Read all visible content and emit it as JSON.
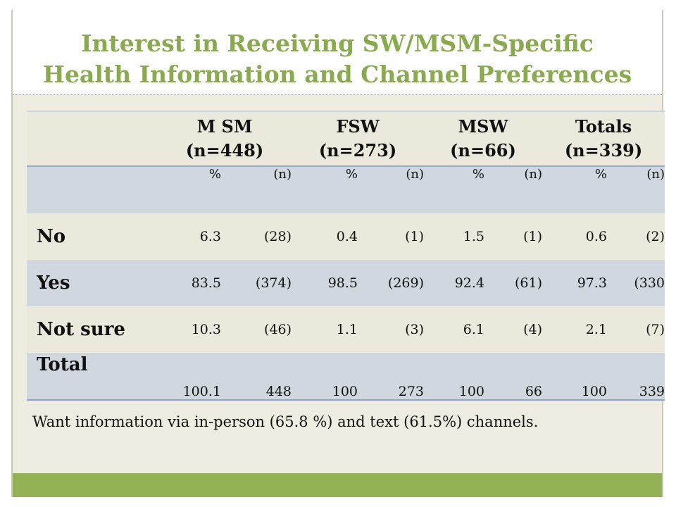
{
  "title": {
    "line1": "Interest in Receiving SW/MSM-Specific",
    "line2": "Health Information and Channel Preferences"
  },
  "table": {
    "columns": [
      {
        "name": "M SM",
        "n": "(n=448)"
      },
      {
        "name": "FSW",
        "n": "(n=273)"
      },
      {
        "name": "MSW",
        "n": "(n=66)"
      },
      {
        "name": "Totals",
        "n": "(n=339)"
      }
    ],
    "units": {
      "pct": "%",
      "count": "(n)"
    },
    "rows": [
      {
        "label": "No",
        "values": [
          "6.3",
          "(28)",
          "0.4",
          "(1)",
          "1.5",
          "(1)",
          "0.6",
          "(2)"
        ]
      },
      {
        "label": "Yes",
        "values": [
          "83.5",
          "(374)",
          "98.5",
          "(269)",
          "92.4",
          "(61)",
          "97.3",
          "(330"
        ]
      },
      {
        "label": "Not sure",
        "values": [
          "10.3",
          "(46)",
          "1.1",
          "(3)",
          "6.1",
          "(4)",
          "2.1",
          "(7)"
        ]
      },
      {
        "label": "Total",
        "values": [
          "100.1",
          "448",
          "100",
          "273",
          "100",
          "66",
          "100",
          "339"
        ]
      }
    ]
  },
  "note": "Want information via in-person (65.8 %) and text (61.5%) channels.",
  "colors": {
    "title": "#8aaa50",
    "background": "#eeebe1",
    "band": "#d0d7de",
    "footer": "#93b256"
  }
}
